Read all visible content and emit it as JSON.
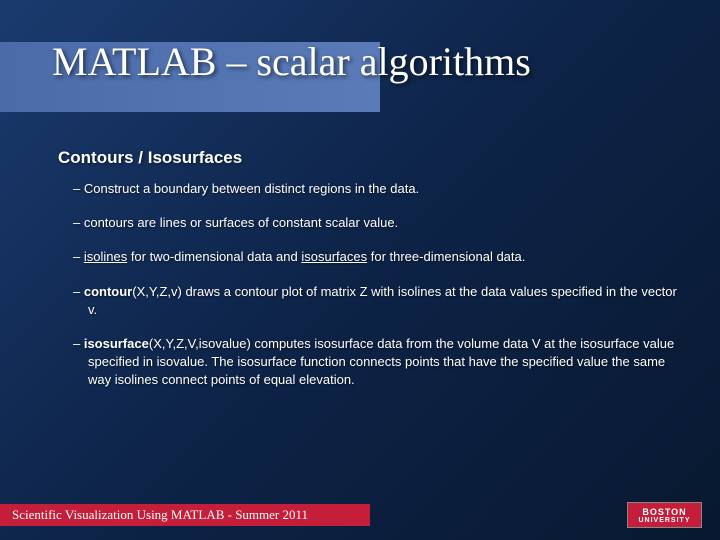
{
  "title": "MATLAB – scalar algorithms",
  "subtitle": "Contours / Isosurfaces",
  "bullets": {
    "b0": "Construct a boundary between distinct regions in the data.",
    "b1": "contours are lines or surfaces of constant scalar value.",
    "b2_pre": "",
    "b2_u1": "isolines",
    "b2_mid": " for two-dimensional data and ",
    "b2_u2": "isosurfaces",
    "b2_post": " for three-dimensional data.",
    "b3_bold": "contour",
    "b3_rest": "(X,Y,Z,v) draws a contour plot of matrix Z with isolines at the data values specified in the vector v.",
    "b4_bold": "isosurface",
    "b4_rest": "(X,Y,Z,V,isovalue) computes isosurface data from the volume data V at the isosurface value specified in isovalue. The isosurface function connects points that have the specified value the same way isolines connect points of equal elevation."
  },
  "footer": "Scientific Visualization Using MATLAB - Summer 2011",
  "logo": {
    "top": "BOSTON",
    "bottom": "UNIVERSITY"
  },
  "colors": {
    "accent_red": "#c41e3a",
    "title_bar": "#4a6ba8",
    "bg_top": "#1a3a6e",
    "bg_bot": "#081830"
  }
}
